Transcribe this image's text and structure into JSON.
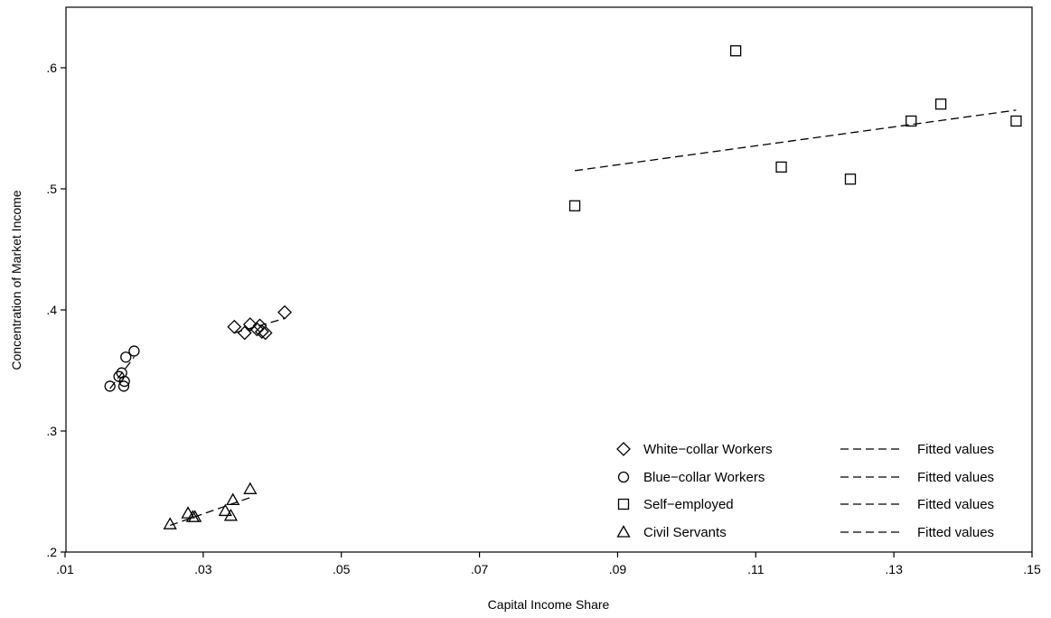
{
  "chart_data": {
    "type": "scatter",
    "title": "",
    "xlabel": "Capital Income Share",
    "ylabel": "Concentration of Market Income",
    "xlim": [
      0.01,
      0.15
    ],
    "ylim": [
      0.2,
      0.65
    ],
    "xticks": [
      0.01,
      0.03,
      0.05,
      0.07,
      0.09,
      0.11,
      0.13,
      0.15
    ],
    "xtick_labels": [
      ".01",
      ".03",
      ".05",
      ".07",
      ".09",
      ".11",
      ".13",
      ".15"
    ],
    "yticks": [
      0.2,
      0.3,
      0.4,
      0.5,
      0.6
    ],
    "ytick_labels": [
      ".2",
      ".3",
      ".4",
      ".5",
      ".6"
    ],
    "grid": false,
    "legend_position": "bottom-right",
    "series": [
      {
        "name": "White−collar Workers",
        "marker": "diamond",
        "fit_name": "Fitted values",
        "points": [
          [
            0.0345,
            0.386
          ],
          [
            0.036,
            0.381
          ],
          [
            0.0368,
            0.388
          ],
          [
            0.0378,
            0.384
          ],
          [
            0.0382,
            0.387
          ],
          [
            0.0385,
            0.382
          ],
          [
            0.039,
            0.381
          ],
          [
            0.0418,
            0.398
          ]
        ],
        "fit": [
          [
            0.0345,
            0.381
          ],
          [
            0.0418,
            0.393
          ]
        ]
      },
      {
        "name": "Blue−collar Workers",
        "marker": "circle",
        "fit_name": "Fitted values",
        "points": [
          [
            0.0165,
            0.337
          ],
          [
            0.0178,
            0.345
          ],
          [
            0.0182,
            0.348
          ],
          [
            0.0185,
            0.337
          ],
          [
            0.0186,
            0.341
          ],
          [
            0.0188,
            0.361
          ],
          [
            0.02,
            0.366
          ]
        ],
        "fit": [
          [
            0.0165,
            0.335
          ],
          [
            0.02,
            0.361
          ]
        ]
      },
      {
        "name": "Self−employed",
        "marker": "square",
        "fit_name": "Fitted values",
        "points": [
          [
            0.0838,
            0.486
          ],
          [
            0.1071,
            0.614
          ],
          [
            0.1137,
            0.518
          ],
          [
            0.1237,
            0.508
          ],
          [
            0.1325,
            0.556
          ],
          [
            0.1368,
            0.57
          ],
          [
            0.1477,
            0.556
          ]
        ],
        "fit": [
          [
            0.0838,
            0.515
          ],
          [
            0.1477,
            0.565
          ]
        ]
      },
      {
        "name": "Civil Servants",
        "marker": "triangle",
        "fit_name": "Fitted values",
        "points": [
          [
            0.0252,
            0.223
          ],
          [
            0.0278,
            0.232
          ],
          [
            0.0285,
            0.229
          ],
          [
            0.0288,
            0.229
          ],
          [
            0.0332,
            0.234
          ],
          [
            0.034,
            0.23
          ],
          [
            0.0343,
            0.243
          ],
          [
            0.0368,
            0.252
          ]
        ],
        "fit": [
          [
            0.0252,
            0.222
          ],
          [
            0.0368,
            0.245
          ]
        ]
      }
    ]
  }
}
